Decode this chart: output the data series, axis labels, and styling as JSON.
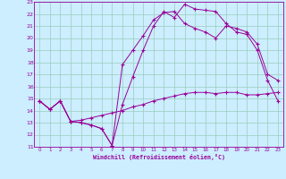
{
  "xlabel": "Windchill (Refroidissement éolien,°C)",
  "bg_color": "#cceeff",
  "line_color": "#990099",
  "grid_color": "#99ccbb",
  "xlim": [
    -0.5,
    23.5
  ],
  "ylim": [
    11,
    23
  ],
  "xticks": [
    0,
    1,
    2,
    3,
    4,
    5,
    6,
    7,
    8,
    9,
    10,
    11,
    12,
    13,
    14,
    15,
    16,
    17,
    18,
    19,
    20,
    21,
    22,
    23
  ],
  "yticks": [
    11,
    12,
    13,
    14,
    15,
    16,
    17,
    18,
    19,
    20,
    21,
    22,
    23
  ],
  "line1_x": [
    0,
    1,
    2,
    3,
    4,
    5,
    6,
    7,
    8,
    9,
    10,
    11,
    12,
    13,
    14,
    15,
    16,
    17,
    18,
    19,
    20,
    21,
    22,
    23
  ],
  "line1_y": [
    14.8,
    14.1,
    14.8,
    13.1,
    13.0,
    12.8,
    12.5,
    11.1,
    14.5,
    16.8,
    19.0,
    21.0,
    22.2,
    21.7,
    22.8,
    22.4,
    22.3,
    22.2,
    21.2,
    20.5,
    20.3,
    19.0,
    16.5,
    14.8
  ],
  "line2_x": [
    0,
    1,
    2,
    3,
    4,
    5,
    6,
    7,
    8,
    9,
    10,
    11,
    12,
    13,
    14,
    15,
    16,
    17,
    18,
    19,
    20,
    21,
    22,
    23
  ],
  "line2_y": [
    14.8,
    14.1,
    14.8,
    13.1,
    13.0,
    12.8,
    12.5,
    11.1,
    17.8,
    19.0,
    20.2,
    21.5,
    22.1,
    22.2,
    21.2,
    20.8,
    20.5,
    20.0,
    21.0,
    20.8,
    20.5,
    19.5,
    17.0,
    16.5
  ],
  "line3_x": [
    0,
    1,
    2,
    3,
    4,
    5,
    6,
    7,
    8,
    9,
    10,
    11,
    12,
    13,
    14,
    15,
    16,
    17,
    18,
    19,
    20,
    21,
    22,
    23
  ],
  "line3_y": [
    14.8,
    14.1,
    14.8,
    13.1,
    13.2,
    13.4,
    13.6,
    13.8,
    14.0,
    14.3,
    14.5,
    14.8,
    15.0,
    15.2,
    15.4,
    15.5,
    15.5,
    15.4,
    15.5,
    15.5,
    15.3,
    15.3,
    15.4,
    15.5
  ]
}
